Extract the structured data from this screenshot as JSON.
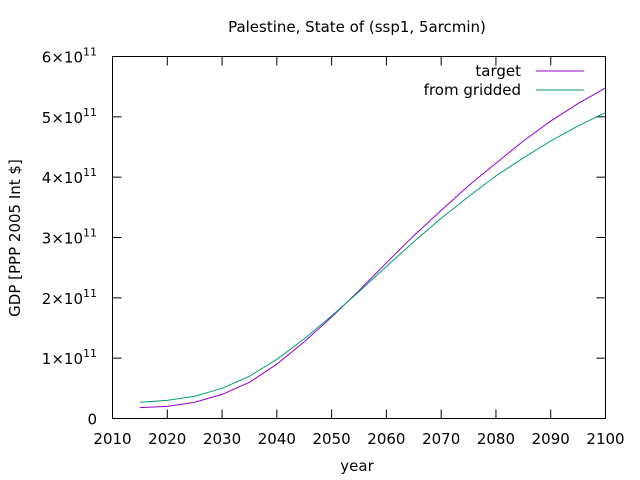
{
  "chart_data": {
    "type": "line",
    "title": "Palestine, State of (ssp1, 5arcmin)",
    "xlabel": "year",
    "ylabel": "GDP [PPP 2005 Int $]",
    "xlim": [
      2010,
      2100
    ],
    "ylim": [
      0,
      600000000000
    ],
    "x_ticks": [
      2010,
      2020,
      2030,
      2040,
      2050,
      2060,
      2070,
      2080,
      2090,
      2100
    ],
    "y_ticks": [
      {
        "value": 0,
        "mantissa": "0",
        "exponent": ""
      },
      {
        "value": 100000000000,
        "mantissa": "1×10",
        "exponent": "11"
      },
      {
        "value": 200000000000,
        "mantissa": "2×10",
        "exponent": "11"
      },
      {
        "value": 300000000000,
        "mantissa": "3×10",
        "exponent": "11"
      },
      {
        "value": 400000000000,
        "mantissa": "4×10",
        "exponent": "11"
      },
      {
        "value": 500000000000,
        "mantissa": "5×10",
        "exponent": "11"
      },
      {
        "value": 600000000000,
        "mantissa": "6×10",
        "exponent": "11"
      }
    ],
    "grid": false,
    "legend_position": "top-right",
    "series": [
      {
        "name": "target",
        "color": "#9400d3",
        "x": [
          2015,
          2020,
          2025,
          2030,
          2035,
          2040,
          2045,
          2050,
          2055,
          2060,
          2065,
          2070,
          2075,
          2080,
          2085,
          2090,
          2095,
          2100
        ],
        "y": [
          18000000000,
          20000000000,
          27000000000,
          40000000000,
          60000000000,
          90000000000,
          127000000000,
          168000000000,
          212000000000,
          258000000000,
          303000000000,
          345000000000,
          386000000000,
          423000000000,
          460000000000,
          493000000000,
          522000000000,
          548000000000
        ]
      },
      {
        "name": "from gridded",
        "color": "#009e73",
        "x": [
          2015,
          2020,
          2025,
          2030,
          2035,
          2040,
          2045,
          2050,
          2055,
          2060,
          2065,
          2070,
          2075,
          2080,
          2085,
          2090,
          2095,
          2100
        ],
        "y": [
          27000000000,
          30000000000,
          37000000000,
          50000000000,
          70000000000,
          98000000000,
          132000000000,
          170000000000,
          210000000000,
          252000000000,
          293000000000,
          332000000000,
          368000000000,
          402000000000,
          432000000000,
          460000000000,
          485000000000,
          507000000000
        ]
      }
    ]
  }
}
